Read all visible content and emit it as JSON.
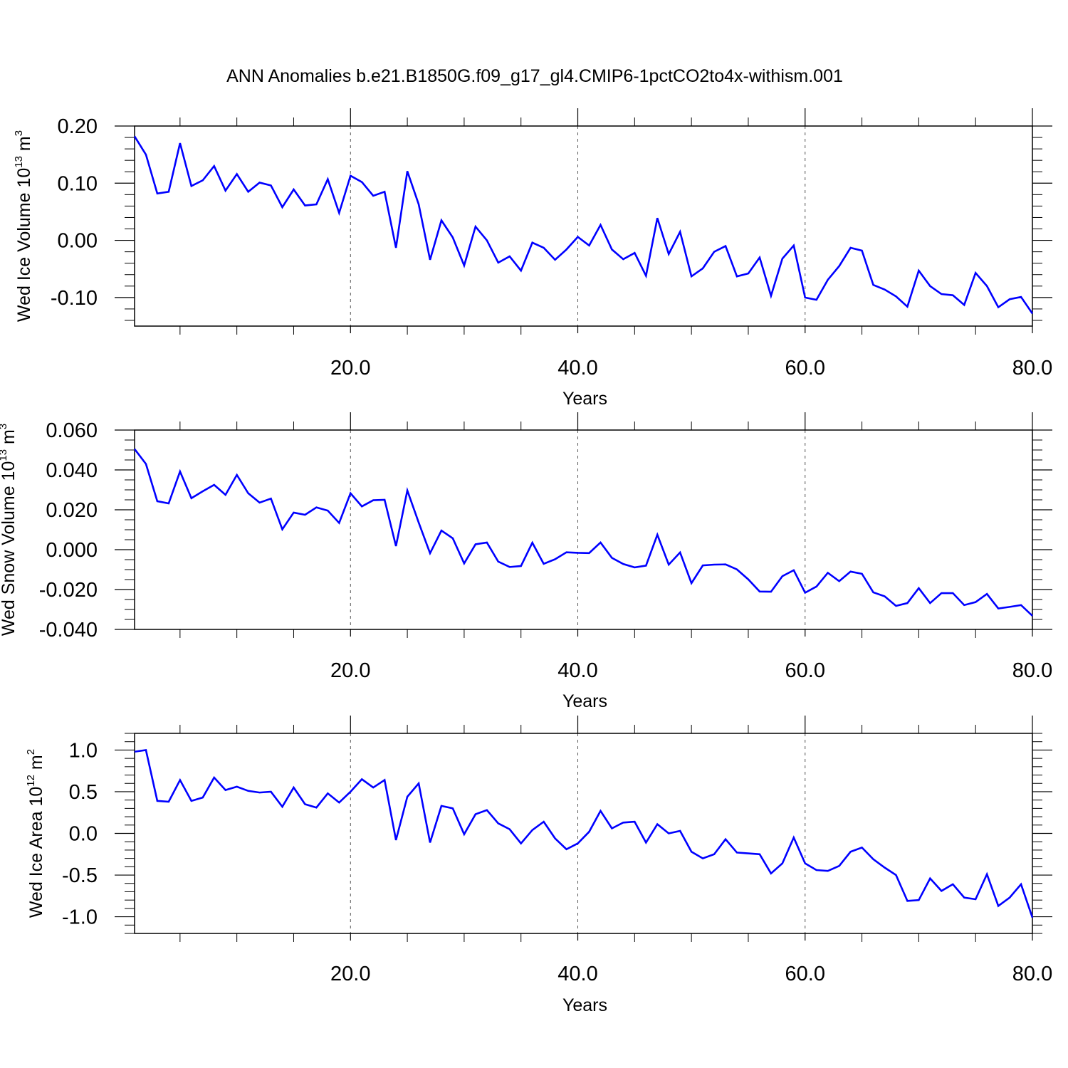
{
  "title": "ANN Anomalies b.e21.B1850G.f09_g17_gl4.CMIP6-1pctCO2to4x-withism.001",
  "colors": {
    "series": "#0000ff",
    "axes": "#000000",
    "grid": "#555555"
  },
  "chart_data": [
    {
      "type": "line",
      "ylabel_prefix": "Wed Ice Volume 10",
      "ylabel_exponent": "13",
      "ylabel_unit": " m",
      "ylabel_unit_exponent": "3",
      "xlabel": "Years",
      "xlim": [
        1,
        80
      ],
      "ylim": [
        -0.15,
        0.2
      ],
      "xticks": [
        20,
        40,
        60,
        80
      ],
      "xtick_labels": [
        "20.0",
        "40.0",
        "60.0",
        "80.0"
      ],
      "yticks": [
        -0.1,
        0.0,
        0.1,
        0.2
      ],
      "ytick_labels": [
        "-0.10",
        "0.00",
        "0.10",
        "0.20"
      ],
      "y_minor_step": 0.02,
      "grid_x_dashed": true,
      "series": [
        {
          "values": [
            0.182,
            0.15,
            0.082,
            0.085,
            0.17,
            0.095,
            0.105,
            0.13,
            0.087,
            0.116,
            0.085,
            0.101,
            0.096,
            0.058,
            0.089,
            0.061,
            0.063,
            0.107,
            0.048,
            0.113,
            0.102,
            0.078,
            0.085,
            -0.013,
            0.121,
            0.063,
            -0.034,
            0.035,
            0.005,
            -0.044,
            0.024,
            0.0,
            -0.039,
            -0.028,
            -0.053,
            -0.004,
            -0.013,
            -0.034,
            -0.016,
            0.006,
            -0.009,
            0.027,
            -0.016,
            -0.033,
            -0.022,
            -0.062,
            0.039,
            -0.024,
            0.015,
            -0.063,
            -0.049,
            -0.02,
            -0.01,
            -0.063,
            -0.058,
            -0.03,
            -0.097,
            -0.032,
            -0.009,
            -0.1,
            -0.104,
            -0.069,
            -0.045,
            -0.013,
            -0.018,
            -0.078,
            -0.086,
            -0.098,
            -0.116,
            -0.053,
            -0.08,
            -0.094,
            -0.096,
            -0.113,
            -0.057,
            -0.08,
            -0.117,
            -0.103,
            -0.099,
            -0.128
          ]
        }
      ]
    },
    {
      "type": "line",
      "ylabel_prefix": "Wed Snow Volume 10",
      "ylabel_exponent": "13",
      "ylabel_unit": " m",
      "ylabel_unit_exponent": "3",
      "xlabel": "Years",
      "xlim": [
        1,
        80
      ],
      "ylim": [
        -0.04,
        0.06
      ],
      "xticks": [
        20,
        40,
        60,
        80
      ],
      "xtick_labels": [
        "20.0",
        "40.0",
        "60.0",
        "80.0"
      ],
      "yticks": [
        -0.04,
        -0.02,
        0.0,
        0.02,
        0.04,
        0.06
      ],
      "ytick_labels": [
        "-0.040",
        "-0.020",
        "0.000",
        "0.020",
        "0.040",
        "0.060"
      ],
      "y_minor_step": 0.005,
      "grid_x_dashed": true,
      "series": [
        {
          "values": [
            0.0505,
            0.043,
            0.0243,
            0.0232,
            0.0392,
            0.0258,
            0.0293,
            0.0325,
            0.0275,
            0.0375,
            0.0283,
            0.0236,
            0.0256,
            0.0102,
            0.0186,
            0.0175,
            0.0212,
            0.0196,
            0.0134,
            0.0283,
            0.0217,
            0.0248,
            0.025,
            0.0018,
            0.0297,
            0.0136,
            -0.0018,
            0.0096,
            0.0057,
            -0.0069,
            0.0027,
            0.0036,
            -0.006,
            -0.0087,
            -0.0082,
            0.0035,
            -0.0071,
            -0.0048,
            -0.0013,
            -0.0016,
            -0.0017,
            0.0036,
            -0.0041,
            -0.0072,
            -0.0089,
            -0.008,
            0.0075,
            -0.0075,
            -0.0014,
            -0.0168,
            -0.0079,
            -0.0075,
            -0.0074,
            -0.0099,
            -0.0149,
            -0.021,
            -0.0211,
            -0.0133,
            -0.0103,
            -0.0216,
            -0.0185,
            -0.0116,
            -0.0158,
            -0.011,
            -0.0121,
            -0.0214,
            -0.0234,
            -0.0282,
            -0.0268,
            -0.0193,
            -0.0268,
            -0.0218,
            -0.0218,
            -0.0278,
            -0.0263,
            -0.0222,
            -0.0295,
            -0.0287,
            -0.0278,
            -0.0332
          ]
        }
      ]
    },
    {
      "type": "line",
      "ylabel_prefix": "Wed Ice Area 10",
      "ylabel_exponent": "12",
      "ylabel_unit": " m",
      "ylabel_unit_exponent": "2",
      "xlabel": "Years",
      "xlim": [
        1,
        80
      ],
      "ylim": [
        -1.2,
        1.2
      ],
      "xticks": [
        20,
        40,
        60,
        80
      ],
      "xtick_labels": [
        "20.0",
        "40.0",
        "60.0",
        "80.0"
      ],
      "yticks": [
        -1.0,
        -0.5,
        0.0,
        0.5,
        1.0
      ],
      "ytick_labels": [
        "-1.0",
        "-0.5",
        "0.0",
        "0.5",
        "1.0"
      ],
      "y_minor_step": 0.1,
      "grid_x_dashed": true,
      "series": [
        {
          "values": [
            0.98,
            1.0,
            0.39,
            0.38,
            0.64,
            0.39,
            0.43,
            0.67,
            0.52,
            0.56,
            0.51,
            0.49,
            0.5,
            0.32,
            0.55,
            0.35,
            0.31,
            0.48,
            0.37,
            0.5,
            0.65,
            0.55,
            0.64,
            -0.08,
            0.44,
            0.6,
            -0.11,
            0.33,
            0.3,
            -0.01,
            0.23,
            0.28,
            0.12,
            0.05,
            -0.12,
            0.04,
            0.14,
            -0.06,
            -0.19,
            -0.12,
            0.02,
            0.27,
            0.06,
            0.13,
            0.14,
            -0.11,
            0.11,
            0.0,
            0.03,
            -0.22,
            -0.3,
            -0.25,
            -0.07,
            -0.23,
            -0.24,
            -0.25,
            -0.48,
            -0.36,
            -0.05,
            -0.36,
            -0.44,
            -0.45,
            -0.39,
            -0.22,
            -0.17,
            -0.31,
            -0.41,
            -0.5,
            -0.81,
            -0.8,
            -0.54,
            -0.69,
            -0.61,
            -0.77,
            -0.79,
            -0.49,
            -0.87,
            -0.77,
            -0.61,
            -1.01
          ]
        }
      ]
    }
  ]
}
